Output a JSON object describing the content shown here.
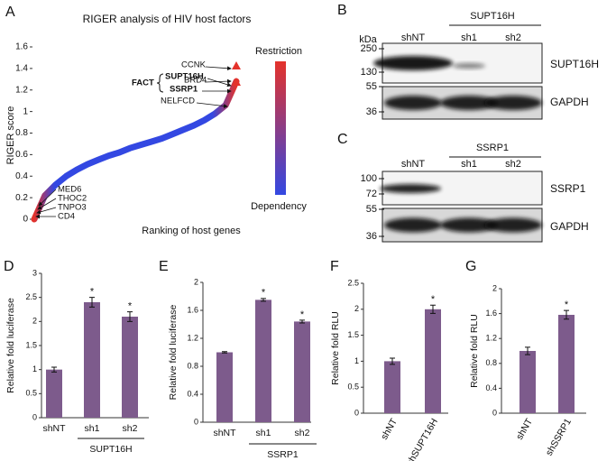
{
  "chart_data": [
    {
      "type": "line",
      "panel": "A",
      "title": "RIGER analysis of HIV host factors",
      "x_label": "Ranking of host genes",
      "y_label": "RIGER score",
      "categories": [
        null,
        null,
        null,
        null,
        null,
        null,
        null,
        null,
        null,
        null,
        null,
        null,
        null,
        null,
        null,
        null,
        null,
        null,
        null,
        null
      ],
      "values": [
        0,
        0.22,
        0.32,
        0.4,
        0.46,
        0.51,
        0.55,
        0.59,
        0.62,
        0.66,
        0.69,
        0.72,
        0.75,
        0.79,
        0.83,
        0.87,
        0.92,
        0.98,
        1.06,
        1.28
      ],
      "ylim": [
        0,
        1.6
      ],
      "yticks": [
        0,
        0.2,
        0.4,
        0.6,
        0.8,
        1,
        1.2,
        1.4,
        1.6
      ],
      "colors": [
        "#e4322b",
        "#3348e2"
      ],
      "colorbar_labels": [
        "Restriction",
        "Dependency"
      ],
      "annotations": [
        {
          "text": "CCNK",
          "color": "#111111"
        },
        {
          "text": "BRD4",
          "color": "#111111"
        },
        {
          "text": "FACT",
          "color": "#e4322b"
        },
        {
          "text": "SUPT16H",
          "color": "#e4322b"
        },
        {
          "text": "SSRP1",
          "color": "#e4322b"
        },
        {
          "text": "NELFCD",
          "color": "#111111"
        },
        {
          "text": "MED6",
          "color": "#111111"
        },
        {
          "text": "THOC2",
          "color": "#111111"
        },
        {
          "text": "TNPO3",
          "color": "#111111"
        },
        {
          "text": "CD4",
          "color": "#111111"
        }
      ]
    },
    {
      "type": "bar",
      "panel": "D",
      "y_label": "Relative fold luciferase",
      "categories": [
        "shNT",
        "sh1",
        "sh2"
      ],
      "values": [
        1,
        2.4,
        2.1
      ],
      "errors": [
        0.05,
        0.1,
        0.1
      ],
      "significance": [
        null,
        "*",
        "*"
      ],
      "group_label": "SUPT16H",
      "color": "#7d5b8c",
      "ylim": [
        0,
        3
      ],
      "yticks": [
        0,
        0.5,
        1,
        1.5,
        2,
        2.5,
        3
      ]
    },
    {
      "type": "bar",
      "panel": "E",
      "y_label": "Relative fold luciferase",
      "categories": [
        "shNT",
        "sh1",
        "sh2"
      ],
      "values": [
        1,
        1.75,
        1.44
      ],
      "errors": [
        0.01,
        0.02,
        0.02
      ],
      "significance": [
        null,
        "*",
        "*"
      ],
      "group_label": "SSRP1",
      "color": "#7d5b8c",
      "ylim": [
        0,
        2
      ],
      "yticks": [
        0,
        0.4,
        0.8,
        1.2,
        1.6,
        2
      ]
    },
    {
      "type": "bar",
      "panel": "F",
      "y_label": "Relative fold RLU",
      "categories": [
        "shNT",
        "shSUPT16H"
      ],
      "values": [
        1,
        2
      ],
      "errors": [
        0.06,
        0.08
      ],
      "significance": [
        null,
        "*"
      ],
      "color": "#7d5b8c",
      "ylim": [
        0,
        2.5
      ],
      "yticks": [
        0,
        0.5,
        1,
        1.5,
        2,
        2.5
      ]
    },
    {
      "type": "bar",
      "panel": "G",
      "y_label": "Relative fold RLU",
      "categories": [
        "shNT",
        "shSSRP1"
      ],
      "values": [
        1,
        1.58
      ],
      "errors": [
        0.06,
        0.07
      ],
      "significance": [
        null,
        "*"
      ],
      "color": "#7d5b8c",
      "ylim": [
        0,
        2
      ],
      "yticks": [
        0,
        0.4,
        0.8,
        1.2,
        1.6,
        2
      ]
    }
  ],
  "blots": [
    {
      "panel": "B",
      "unit": "kDa",
      "markers": [
        250,
        130,
        55,
        36
      ],
      "group_label": "SUPT16H",
      "lanes": [
        "shNT",
        "sh1",
        "sh2"
      ],
      "proteins": [
        "SUPT16H",
        "GAPDH"
      ]
    },
    {
      "panel": "C",
      "markers": [
        100,
        72,
        55,
        36
      ],
      "group_label": "SSRP1",
      "lanes": [
        "shNT",
        "sh1",
        "sh2"
      ],
      "proteins": [
        "SSRP1",
        "GAPDH"
      ]
    }
  ]
}
